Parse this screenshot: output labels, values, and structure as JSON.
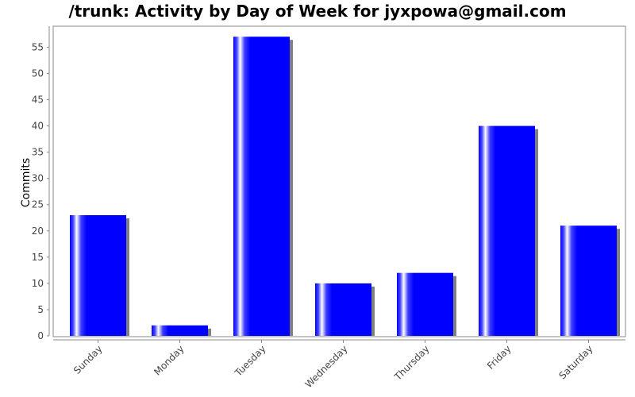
{
  "chart_data": {
    "type": "bar",
    "title": "/trunk: Activity by Day of Week for jyxpowa@gmail.com",
    "xlabel": "",
    "ylabel": "Commits",
    "categories": [
      "Sunday",
      "Monday",
      "Tuesday",
      "Wednesday",
      "Thursday",
      "Friday",
      "Saturday"
    ],
    "values": [
      23,
      2,
      57,
      10,
      12,
      40,
      21
    ],
    "ylim": [
      0,
      59
    ],
    "yticks": [
      0,
      5,
      10,
      15,
      20,
      25,
      30,
      35,
      40,
      45,
      50,
      55
    ],
    "grid": false,
    "legend": "none",
    "bar_color": "#0000ff",
    "shadow_color": "#808080"
  }
}
